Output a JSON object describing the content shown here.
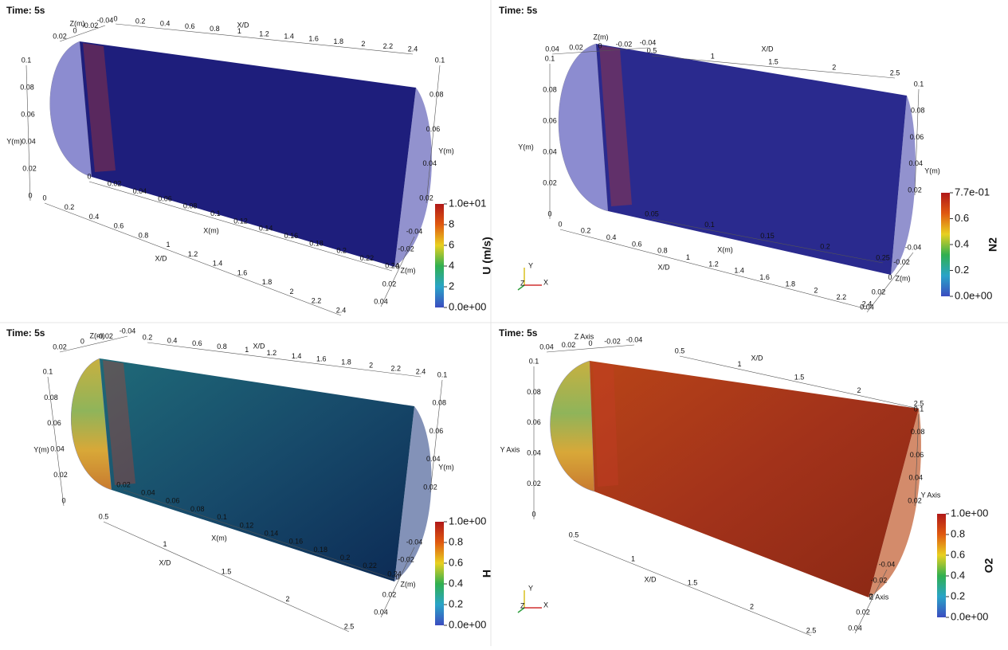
{
  "panels": [
    {
      "time": "Time: 5s",
      "axes": [
        {
          "title": "X/D",
          "labels": [
            "0",
            "0.2",
            "0.4",
            "0.6",
            "0.8",
            "1",
            "1.2",
            "1.4",
            "1.6",
            "1.8",
            "2",
            "2.2",
            "2.4"
          ]
        },
        {
          "title": "Z(m)",
          "labels": [
            "0.02",
            "0",
            "-0.02",
            "-0.04"
          ]
        },
        {
          "title": "Y(m)",
          "labels": [
            "0",
            "0.02",
            "0.04",
            "0.06",
            "0.08",
            "0.1"
          ]
        },
        {
          "title": "Y(m)",
          "labels": [
            "0.02",
            "0.04",
            "0.06",
            "0.08",
            "0.1"
          ]
        },
        {
          "title": "X(m)",
          "labels": [
            "0",
            "0.02",
            "0.04",
            "0.06",
            "0.08",
            "0.1",
            "0.12",
            "0.14",
            "0.16",
            "0.18",
            "0.2",
            "0.22",
            "0.24"
          ]
        },
        {
          "title": "X/D",
          "labels": [
            "0",
            "0.2",
            "0.4",
            "0.6",
            "0.8",
            "1",
            "1.2",
            "1.4",
            "1.6",
            "1.8",
            "2",
            "2.2",
            "2.4"
          ]
        },
        {
          "title": "Z(m)",
          "labels": [
            "-0.04",
            "-0.02",
            "0",
            "0.02",
            "0.04"
          ]
        }
      ],
      "colorbar": {
        "title": "U (m/s)",
        "labels": [
          "1.0e+01",
          "8",
          "6",
          "4",
          "2",
          "0.0e+00"
        ]
      }
    },
    {
      "time": "Time: 5s",
      "axes": [
        {
          "title": "X/D",
          "labels": [
            "0.5",
            "1",
            "1.5",
            "2",
            "2.5"
          ]
        },
        {
          "title": "Z(m)",
          "labels": [
            "0.04",
            "0.02",
            "0",
            "-0.02",
            "-0.04"
          ]
        },
        {
          "title": "Y(m)",
          "labels": [
            "0",
            "0.02",
            "0.04",
            "0.06",
            "0.08",
            "0.1"
          ]
        },
        {
          "title": "Y(m)",
          "labels": [
            "0.02",
            "0.04",
            "0.06",
            "0.08",
            "0.1"
          ]
        },
        {
          "title": "X(m)",
          "labels": [
            "0.05",
            "0.1",
            "0.15",
            "0.2",
            "0.25"
          ]
        },
        {
          "title": "X/D",
          "labels": [
            "0",
            "0.2",
            "0.4",
            "0.6",
            "0.8",
            "1",
            "1.2",
            "1.4",
            "1.6",
            "1.8",
            "2",
            "2.2",
            "2.4"
          ]
        },
        {
          "title": "Z(m)",
          "labels": [
            "-0.04",
            "-0.02",
            "0",
            "0.02",
            "0.04"
          ]
        }
      ],
      "colorbar": {
        "title": "N2",
        "labels": [
          "7.7e-01",
          "0.6",
          "0.4",
          "0.2",
          "0.0e+00"
        ]
      },
      "orientation": [
        "Y",
        "Z",
        "X"
      ]
    },
    {
      "time": "Time: 5s",
      "axes": [
        {
          "title": "X/D",
          "labels": [
            "0.2",
            "0.4",
            "0.6",
            "0.8",
            "1",
            "1.2",
            "1.4",
            "1.6",
            "1.8",
            "2",
            "2.2",
            "2.4"
          ]
        },
        {
          "title": "Z(m)",
          "labels": [
            "0.02",
            "0",
            "-0.02",
            "-0.04"
          ]
        },
        {
          "title": "Y(m)",
          "labels": [
            "0",
            "0.02",
            "0.04",
            "0.06",
            "0.08",
            "0.1"
          ]
        },
        {
          "title": "Y(m)",
          "labels": [
            "0.02",
            "0.04",
            "0.06",
            "0.08",
            "0.1"
          ]
        },
        {
          "title": "X(m)",
          "labels": [
            "0.02",
            "0.04",
            "0.06",
            "0.08",
            "0.1",
            "0.12",
            "0.14",
            "0.16",
            "0.18",
            "0.2",
            "0.22",
            "0.24"
          ]
        },
        {
          "title": "X/D",
          "labels": [
            "0.5",
            "1",
            "1.5",
            "2",
            "2.5"
          ]
        },
        {
          "title": "Z(m)",
          "labels": [
            "-0.04",
            "-0.02",
            "0",
            "0.02",
            "0.04"
          ]
        }
      ],
      "colorbar": {
        "title": "H",
        "labels": [
          "1.0e+00",
          "0.8",
          "0.6",
          "0.4",
          "0.2",
          "0.0e+00"
        ]
      }
    },
    {
      "time": "Time: 5s",
      "axes": [
        {
          "title": "X/D",
          "labels": [
            "0.5",
            "1",
            "1.5",
            "2",
            "2.5"
          ]
        },
        {
          "title": "Z Axis",
          "labels": [
            "0.04",
            "0.02",
            "0",
            "-0.02",
            "-0.04"
          ]
        },
        {
          "title": "Y Axis",
          "labels": [
            "0",
            "0.02",
            "0.04",
            "0.06",
            "0.08",
            "0.1"
          ]
        },
        {
          "title": "Y Axis",
          "labels": [
            "0.02",
            "0.04",
            "0.06",
            "0.08",
            "0.1"
          ]
        },
        {
          "title": "X/D",
          "labels": [
            "0.5",
            "1",
            "1.5",
            "2",
            "2.5"
          ]
        },
        {
          "title": "Z Axis",
          "labels": [
            "-0.04",
            "-0.02",
            "0",
            "0.02",
            "0.04"
          ]
        }
      ],
      "colorbar": {
        "title": "O2",
        "labels": [
          "1.0e+00",
          "0.8",
          "0.6",
          "0.4",
          "0.2",
          "0.0e+00"
        ]
      },
      "orientation": [
        "Y",
        "Z",
        "X"
      ]
    }
  ]
}
